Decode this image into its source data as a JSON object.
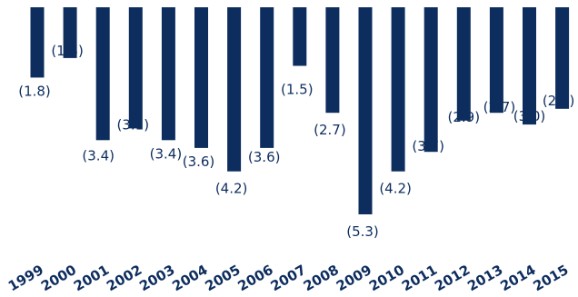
{
  "chart_data": {
    "type": "bar",
    "categories": [
      "1999",
      "2000",
      "2001",
      "2002",
      "2003",
      "2004",
      "2005",
      "2006",
      "2007",
      "2008",
      "2009",
      "2010",
      "2011",
      "2012",
      "2013",
      "2014",
      "2015"
    ],
    "values": [
      -1.8,
      -1.3,
      -3.4,
      -3.1,
      -3.4,
      -3.6,
      -4.2,
      -3.6,
      -1.5,
      -2.7,
      -5.3,
      -4.2,
      -3.7,
      -2.9,
      -2.7,
      -3.0,
      -2.6
    ],
    "data_labels": [
      "(1.8)",
      "(1.3)",
      "(3.4)",
      "(3.1)",
      "(3.4)",
      "(3.6)",
      "(4.2)",
      "(3.6)",
      "(1.5)",
      "(2.7)",
      "(5.3)",
      "(4.2)",
      "(3.7)",
      "(2.9)",
      "(2.7)",
      "(3.0)",
      "(2.6)"
    ],
    "title": "",
    "xlabel": "",
    "ylabel": "",
    "ylim": [
      -5.3,
      0
    ],
    "grid": false,
    "legend": "none",
    "bar_color": "#0d2d5e"
  }
}
